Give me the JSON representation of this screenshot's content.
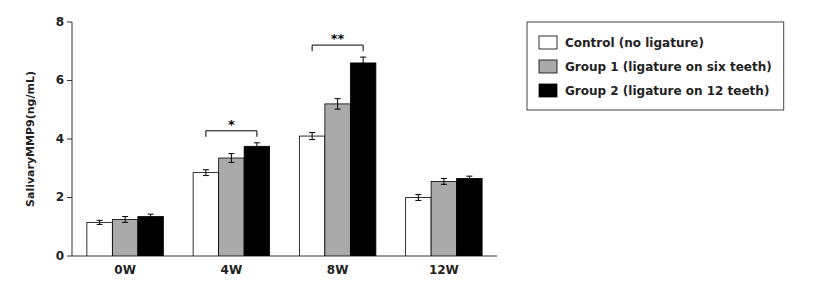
{
  "chart_data": {
    "type": "bar",
    "categories": [
      "0W",
      "4W",
      "8W",
      "12W"
    ],
    "series": [
      {
        "name": "Control (no ligature)",
        "color": "#ffffff",
        "values": [
          1.15,
          2.85,
          4.1,
          2.0
        ],
        "errors": [
          0.07,
          0.1,
          0.12,
          0.1
        ]
      },
      {
        "name": "Group 1 (ligature on six teeth)",
        "color": "#aaaaaa",
        "values": [
          1.25,
          3.35,
          5.2,
          2.55
        ],
        "errors": [
          0.1,
          0.15,
          0.18,
          0.1
        ]
      },
      {
        "name": "Group 2 (ligature on 12 teeth)",
        "color": "#000000",
        "values": [
          1.35,
          3.75,
          6.6,
          2.65
        ],
        "errors": [
          0.08,
          0.12,
          0.2,
          0.08
        ]
      }
    ],
    "y_label": "SalivaryMMP9(ng/mL)",
    "ylim": [
      0,
      8
    ],
    "yticks": [
      0,
      2,
      4,
      6,
      8
    ],
    "grid": false,
    "legend": "right",
    "annotations": [
      {
        "text": "*",
        "category": "4W"
      },
      {
        "text": "**",
        "category": "8W"
      }
    ]
  }
}
